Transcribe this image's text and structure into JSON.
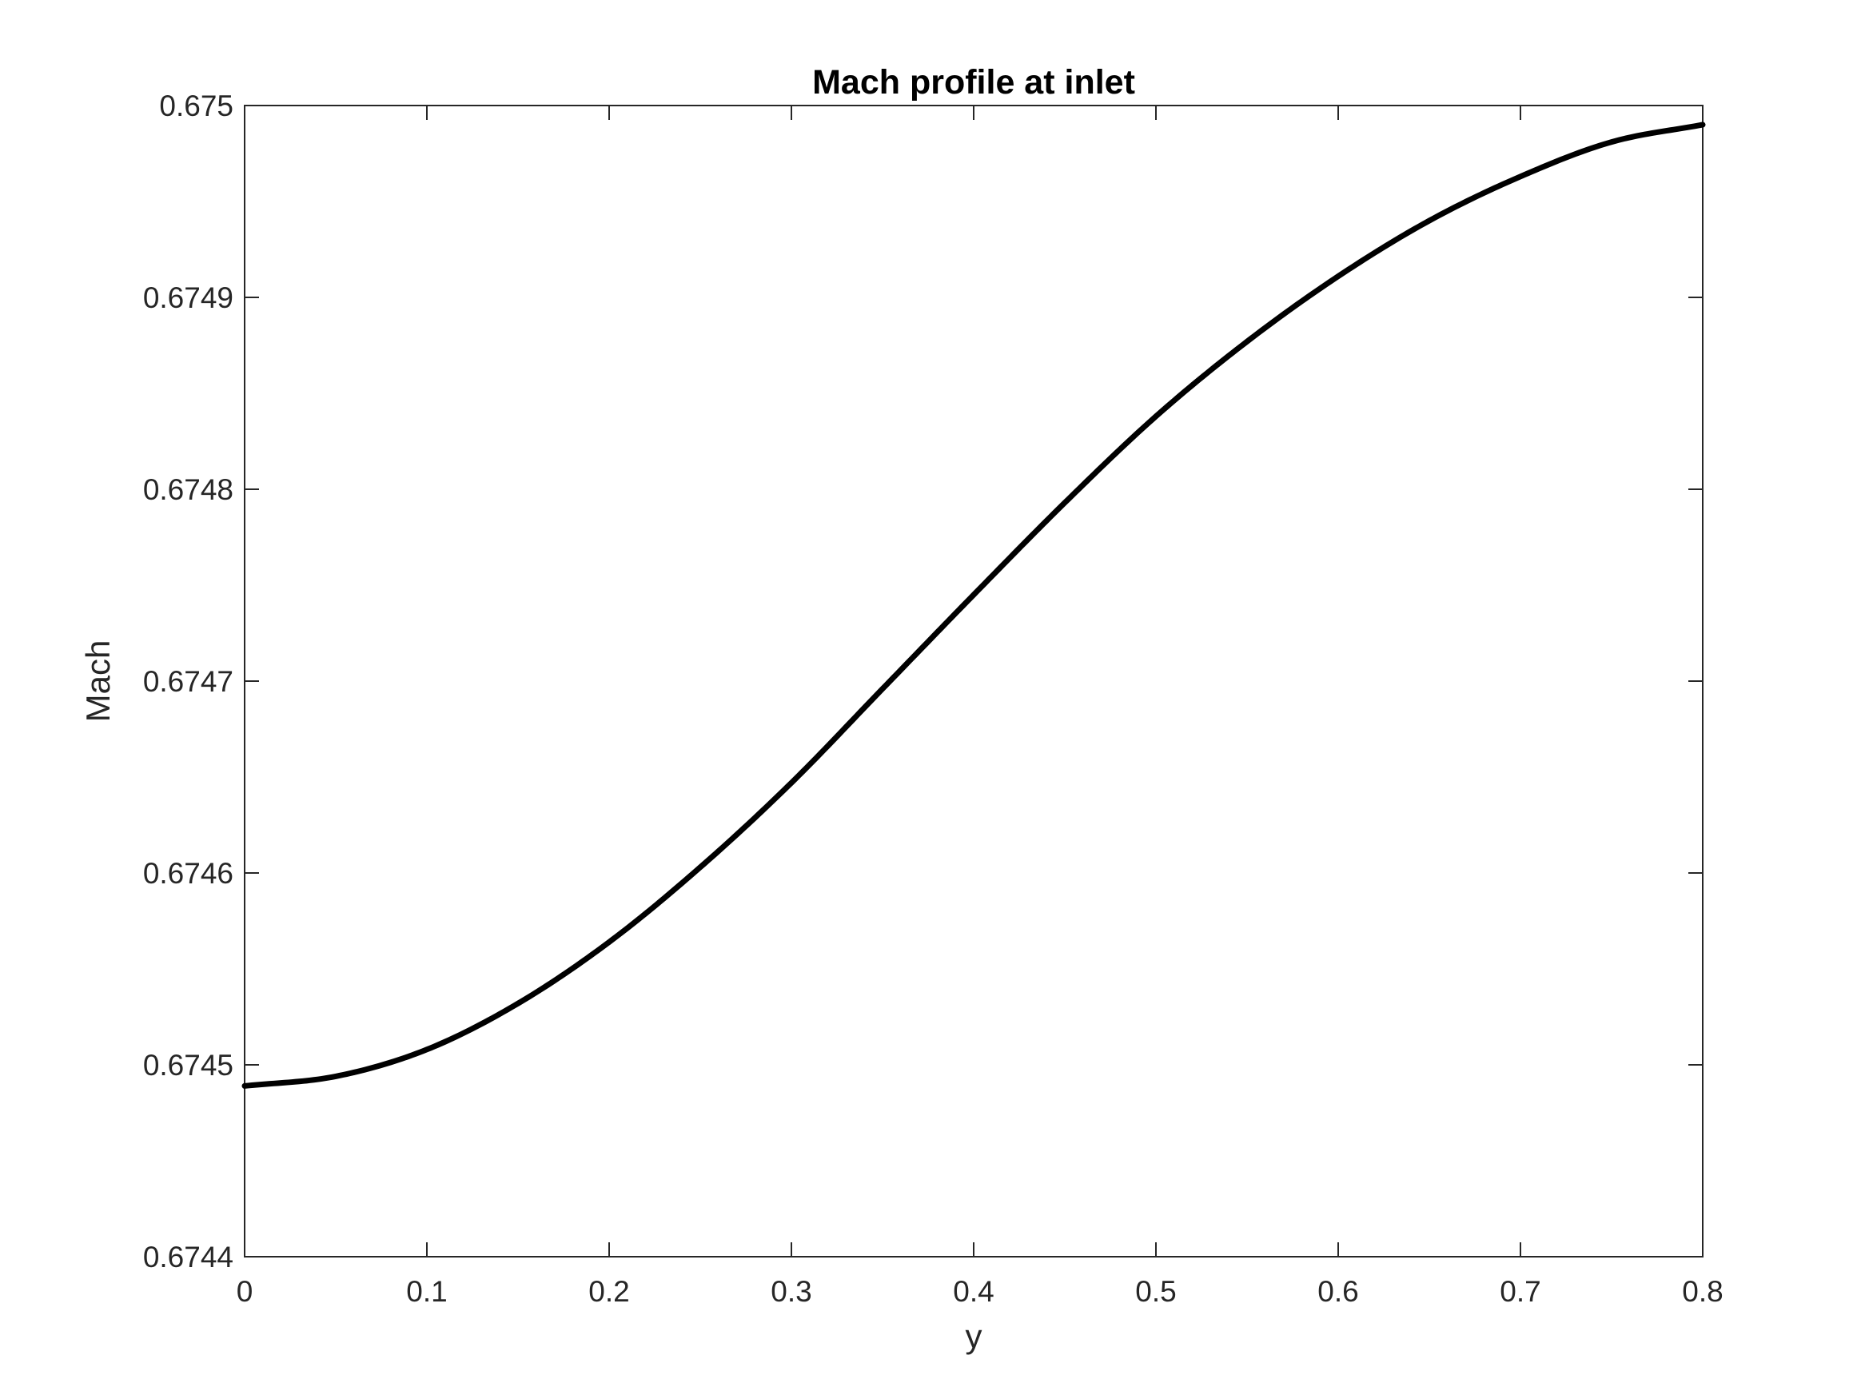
{
  "chart_data": {
    "type": "line",
    "title": "Mach profile at inlet",
    "xlabel": "y",
    "ylabel": "Mach",
    "xlim": [
      0,
      0.8
    ],
    "ylim": [
      0.6744,
      0.675
    ],
    "xticks": [
      0,
      0.1,
      0.2,
      0.3,
      0.4,
      0.5,
      0.6,
      0.7,
      0.8
    ],
    "xtick_labels": [
      "0",
      "0.1",
      "0.2",
      "0.3",
      "0.4",
      "0.5",
      "0.6",
      "0.7",
      "0.8"
    ],
    "yticks": [
      0.6744,
      0.6745,
      0.6746,
      0.6747,
      0.6748,
      0.6749,
      0.675
    ],
    "ytick_labels": [
      "0.6744",
      "0.6745",
      "0.6746",
      "0.6747",
      "0.6748",
      "0.6749",
      "0.675"
    ],
    "grid": false,
    "series": [
      {
        "color": "#000000",
        "x": [
          0,
          0.05,
          0.1,
          0.15,
          0.2,
          0.25,
          0.3,
          0.35,
          0.4,
          0.45,
          0.5,
          0.55,
          0.6,
          0.65,
          0.7,
          0.75,
          0.8
        ],
        "y": [
          0.674489,
          0.674494,
          0.674508,
          0.674532,
          0.674564,
          0.674603,
          0.674647,
          0.674696,
          0.674745,
          0.674793,
          0.674838,
          0.674877,
          0.674911,
          0.67494,
          0.674963,
          0.674981,
          0.67499
        ]
      }
    ]
  }
}
